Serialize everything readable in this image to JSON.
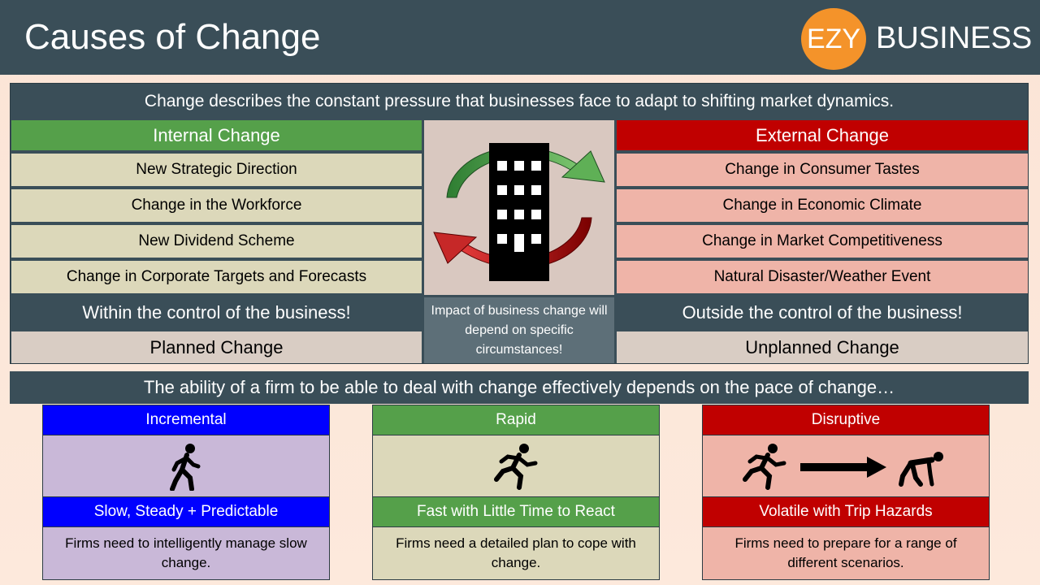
{
  "header": {
    "title": "Causes of Change",
    "logo_circle": "EZY",
    "logo_text": "BUSINESS"
  },
  "panel": {
    "intro": "Change describes the constant pressure that businesses face to adapt to shifting market dynamics.",
    "internal": {
      "heading": "Internal Change",
      "items": [
        "New Strategic Direction",
        "Change in the Workforce",
        "New Dividend Scheme",
        "Change in Corporate Targets and Forecasts"
      ],
      "control": "Within the control of the business!",
      "type": "Planned Change"
    },
    "external": {
      "heading": "External Change",
      "items": [
        "Change in Consumer Tastes",
        "Change in Economic Climate",
        "Change in Market Competitiveness",
        "Natural Disaster/Weather Event"
      ],
      "control": "Outside the control of the business!",
      "type": "Unplanned Change"
    },
    "center_icon": "office-building-cycle-icon",
    "impact": "Impact of business change will depend on specific circumstances!"
  },
  "pace": {
    "intro": "The ability of a firm to be able to deal with change effectively depends on the pace of change…",
    "columns": [
      {
        "heading": "Incremental",
        "icon": "walking-person-icon",
        "subheading": "Slow, Steady + Predictable",
        "description": "Firms need to intelligently manage slow change.",
        "color": "#0000ff",
        "bg": "#c9b8d8"
      },
      {
        "heading": "Rapid",
        "icon": "running-person-icon",
        "subheading": "Fast with Little Time to React",
        "description": "Firms need a detailed plan to cope with change.",
        "color": "#55a04a",
        "bg": "#dcd8ba"
      },
      {
        "heading": "Disruptive",
        "icon": "running-then-tripping-person-icon",
        "subheading": "Volatile with Trip Hazards",
        "description": "Firms need to prepare for a range of different scenarios.",
        "color": "#c00000",
        "bg": "#efb4a8"
      }
    ]
  }
}
